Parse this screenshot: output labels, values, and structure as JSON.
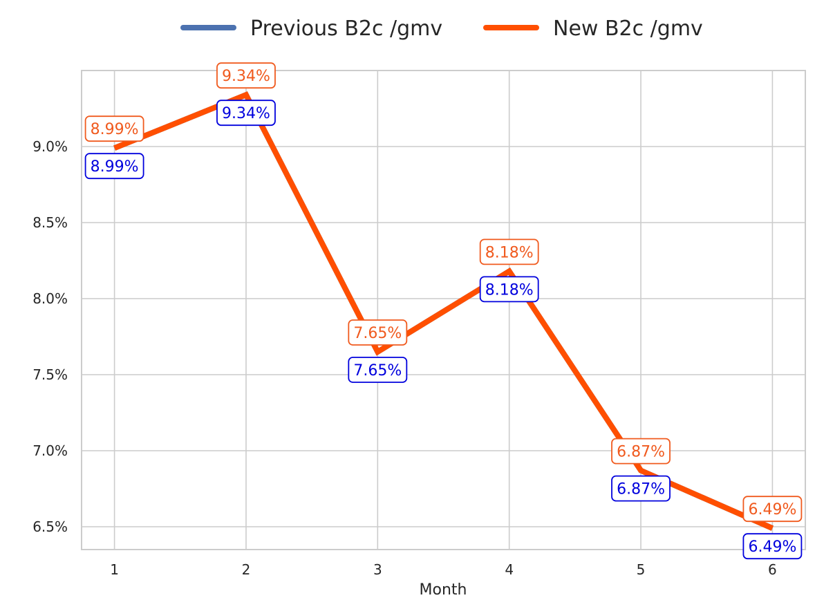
{
  "colors": {
    "previous": "#4c72b0",
    "new": "#ff4f00",
    "label_previous": "#0000dd",
    "label_new": "#f05a1e",
    "grid": "#cccccc",
    "frame": "#cccccc",
    "text": "#262626",
    "background": "#ffffff"
  },
  "legend": {
    "placement": "top-center",
    "items": [
      {
        "label": "Previous B2c /gmv",
        "color_key": "previous"
      },
      {
        "label": "New B2c /gmv",
        "color_key": "new"
      }
    ]
  },
  "chart_data": {
    "type": "line",
    "title": "",
    "xlabel": "Month",
    "ylabel": "",
    "x": [
      1,
      2,
      3,
      4,
      5,
      6
    ],
    "x_tick_labels": [
      "1",
      "2",
      "3",
      "4",
      "5",
      "6"
    ],
    "xlim": [
      0.75,
      6.25
    ],
    "ylim": [
      6.35,
      9.5
    ],
    "y_ticks": [
      6.5,
      7.0,
      7.5,
      8.0,
      8.5,
      9.0
    ],
    "y_tick_labels": [
      "6.5%",
      "7.0%",
      "7.5%",
      "8.0%",
      "8.5%",
      "9.0%"
    ],
    "grid": true,
    "series": [
      {
        "name": "Previous B2c /gmv",
        "values": [
          8.99,
          9.34,
          7.65,
          8.18,
          6.87,
          6.49
        ],
        "labels": [
          "8.99%",
          "9.34%",
          "7.65%",
          "8.18%",
          "6.87%",
          "6.49%"
        ],
        "label_position": "below"
      },
      {
        "name": "New B2c /gmv",
        "values": [
          8.99,
          9.34,
          7.65,
          8.18,
          6.87,
          6.49
        ],
        "labels": [
          "8.99%",
          "9.34%",
          "7.65%",
          "8.18%",
          "6.87%",
          "6.49%"
        ],
        "label_position": "above"
      }
    ]
  }
}
